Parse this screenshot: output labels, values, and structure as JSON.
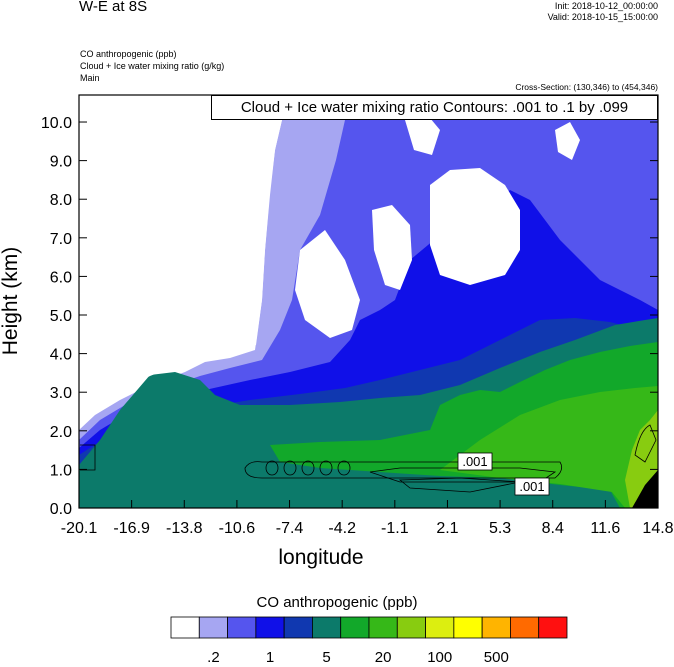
{
  "header": {
    "title": "W-E at 8S",
    "init": "Init: 2018-10-12_00:00:00",
    "valid": "Valid: 2018-10-15_15:00:00",
    "fields": [
      "CO anthropogenic   (ppb)",
      "Cloud + Ice water mixing ratio   (g/kg)",
      "Main"
    ],
    "cross_section": "Cross-Section: (130,346) to (454,346)"
  },
  "chart_data": {
    "type": "heatmap",
    "xlabel": "longitude",
    "ylabel": "Height (km)",
    "x_ticks": [
      "-20.1",
      "-16.9",
      "-13.8",
      "-10.6",
      "-7.4",
      "-4.2",
      "-1.1",
      "2.1",
      "5.3",
      "8.4",
      "11.6",
      "14.8"
    ],
    "y_ticks": [
      "0.0",
      "1.0",
      "2.0",
      "3.0",
      "4.0",
      "5.0",
      "6.0",
      "7.0",
      "8.0",
      "9.0",
      "10.0"
    ],
    "xlim": [
      -20.1,
      14.8
    ],
    "ylim": [
      0.0,
      10.7
    ],
    "contour_text": "Cloud + Ice water mixing ratio Contours: .001 to .1 by .099",
    "contour_labels": [
      ".001",
      ".001"
    ],
    "colorbar": {
      "title": "CO anthropogenic  (ppb)",
      "labels": [
        ".2",
        "1",
        "5",
        "20",
        "100",
        "500"
      ],
      "colors": [
        "#ffffff",
        "#a6a6f2",
        "#5555ee",
        "#1010e8",
        "#1038b0",
        "#0c7a6a",
        "#12a82a",
        "#36b818",
        "#88cc10",
        "#dcee10",
        "#ffff00",
        "#ffb400",
        "#ff6a00",
        "#ff1010"
      ]
    },
    "grid": false
  }
}
